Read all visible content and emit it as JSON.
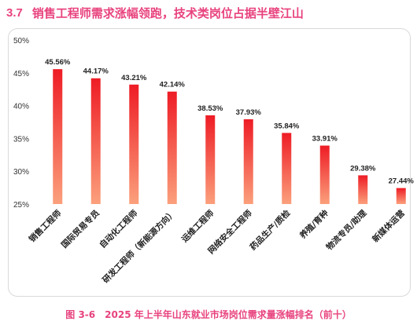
{
  "header": {
    "section_number": "3.7",
    "title": "销售工程师需求涨幅领跑，技术类岗位占据半壁江山"
  },
  "caption": "图 3-6　2025 年上半年山东就业市场岗位需求量涨幅排名（前十）",
  "chart_data": {
    "type": "bar",
    "categories": [
      "销售工程师",
      "国际贸易专员",
      "自动化工程师",
      "研发工程师（新能源方向）",
      "运维工程师",
      "网络安全工程师",
      "药品生产/质检",
      "养殖/育种",
      "物流专员/助理",
      "新媒体运营"
    ],
    "values": [
      45.56,
      44.17,
      43.21,
      42.14,
      38.53,
      37.93,
      35.84,
      33.91,
      29.38,
      27.44
    ],
    "value_labels": [
      "45.56%",
      "44.17%",
      "43.21%",
      "42.14%",
      "38.53%",
      "37.93%",
      "35.84%",
      "33.91%",
      "29.38%",
      "27.44%"
    ],
    "y_ticks": [
      "50%",
      "45%",
      "40%",
      "35%",
      "30%",
      "25%"
    ],
    "ylim": [
      25,
      50
    ],
    "title": "",
    "xlabel": "",
    "ylabel": "",
    "grid": false,
    "bar_color_top": "#ee1c25",
    "bar_color_bottom": "#fba07c"
  }
}
